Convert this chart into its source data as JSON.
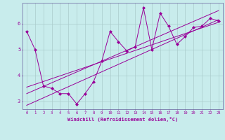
{
  "title": "",
  "xlabel": "Windchill (Refroidissement éolien,°C)",
  "ylabel": "",
  "bg_color": "#c8ecec",
  "line_color": "#990099",
  "grid_color": "#aacccc",
  "spine_color": "#7777aa",
  "xlim": [
    -0.5,
    23.5
  ],
  "ylim": [
    2.7,
    6.8
  ],
  "xticks": [
    0,
    1,
    2,
    3,
    4,
    5,
    6,
    7,
    8,
    9,
    10,
    11,
    12,
    13,
    14,
    15,
    16,
    17,
    18,
    19,
    20,
    21,
    22,
    23
  ],
  "yticks": [
    3,
    4,
    5,
    6
  ],
  "data_x": [
    0,
    1,
    2,
    3,
    4,
    5,
    6,
    7,
    8,
    9,
    10,
    11,
    12,
    13,
    14,
    15,
    16,
    17,
    18,
    19,
    20,
    21,
    22,
    23
  ],
  "data_y": [
    5.7,
    5.0,
    3.6,
    3.5,
    3.3,
    3.3,
    2.9,
    3.3,
    3.75,
    4.55,
    5.7,
    5.3,
    4.95,
    5.1,
    6.6,
    5.0,
    6.4,
    5.9,
    5.2,
    5.5,
    5.85,
    5.9,
    6.2,
    6.1
  ],
  "trend1_x": [
    0,
    23
  ],
  "trend1_y": [
    3.3,
    6.5
  ],
  "trend2_x": [
    0,
    23
  ],
  "trend2_y": [
    2.85,
    6.15
  ],
  "trend3_x": [
    0,
    23
  ],
  "trend3_y": [
    3.55,
    6.05
  ]
}
